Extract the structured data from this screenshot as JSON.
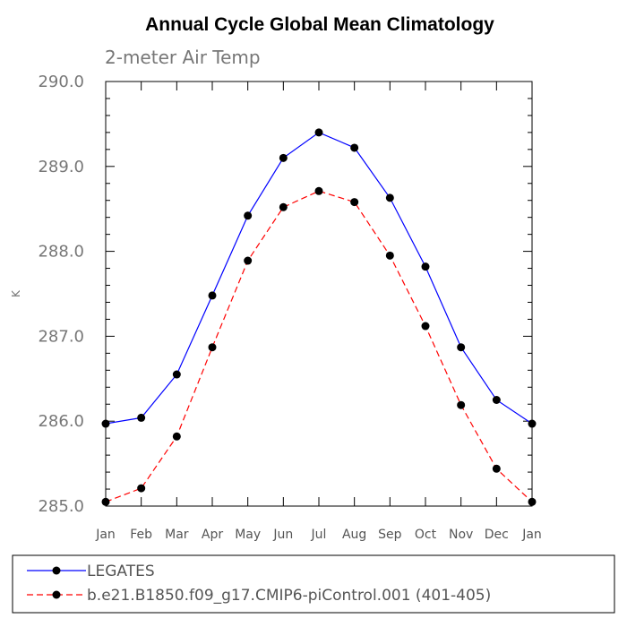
{
  "chart_data": {
    "type": "line",
    "title": "Annual Cycle Global Mean Climatology",
    "subtitle": "2-meter Air Temp",
    "ylabel": "K",
    "xlabel": "",
    "ylim": [
      285.0,
      290.0
    ],
    "yticks": [
      285.0,
      286.0,
      287.0,
      288.0,
      289.0,
      290.0
    ],
    "ytick_labels": [
      "285.0",
      "286.0",
      "287.0",
      "288.0",
      "289.0",
      "290.0"
    ],
    "categories": [
      "Jan",
      "Feb",
      "Mar",
      "Apr",
      "May",
      "Jun",
      "Jul",
      "Aug",
      "Sep",
      "Oct",
      "Nov",
      "Dec",
      "Jan"
    ],
    "series": [
      {
        "name": "LEGATES",
        "color": "#0000ff",
        "dashed": false,
        "values": [
          285.97,
          286.04,
          286.55,
          287.48,
          288.42,
          289.1,
          289.4,
          289.22,
          288.63,
          287.82,
          286.87,
          286.25,
          285.97
        ]
      },
      {
        "name": "b.e21.B1850.f09_g17.CMIP6-piControl.001 (401-405)",
        "color": "#ff0000",
        "dashed": true,
        "values": [
          285.05,
          285.21,
          285.82,
          286.87,
          287.89,
          288.52,
          288.71,
          288.58,
          287.95,
          287.12,
          286.19,
          285.44,
          285.05
        ]
      }
    ],
    "legend_position": "bottom"
  }
}
